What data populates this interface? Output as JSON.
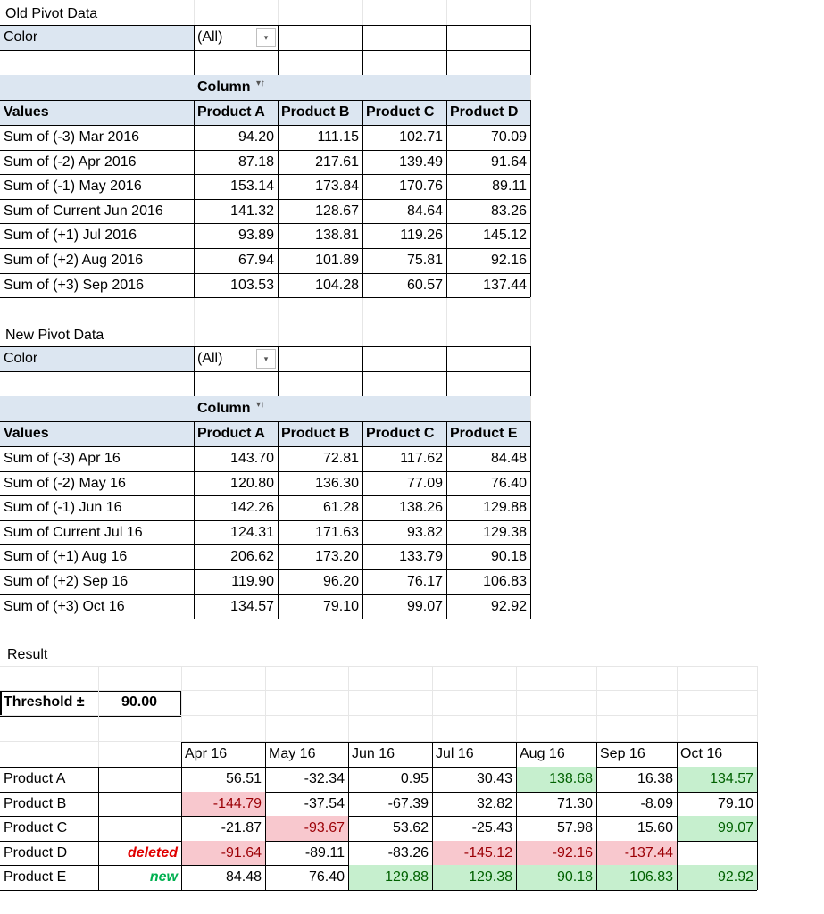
{
  "old": {
    "title": "Old Pivot Data",
    "filter_label": "Color",
    "filter_value": "(All)",
    "column_label": "Column",
    "values_label": "Values",
    "columns": [
      "Product A",
      "Product B",
      "Product C",
      "Product D"
    ],
    "rows": [
      {
        "label": "Sum of (-3) Mar 2016",
        "vals": [
          "94.20",
          "111.15",
          "102.71",
          "70.09"
        ]
      },
      {
        "label": "Sum of (-2) Apr 2016",
        "vals": [
          "87.18",
          "217.61",
          "139.49",
          "91.64"
        ]
      },
      {
        "label": "Sum of (-1) May 2016",
        "vals": [
          "153.14",
          "173.84",
          "170.76",
          "89.11"
        ]
      },
      {
        "label": "Sum of Current Jun 2016",
        "vals": [
          "141.32",
          "128.67",
          "84.64",
          "83.26"
        ]
      },
      {
        "label": "Sum of (+1) Jul 2016",
        "vals": [
          "93.89",
          "138.81",
          "119.26",
          "145.12"
        ]
      },
      {
        "label": "Sum of (+2) Aug 2016",
        "vals": [
          "67.94",
          "101.89",
          "75.81",
          "92.16"
        ]
      },
      {
        "label": "Sum of (+3) Sep 2016",
        "vals": [
          "103.53",
          "104.28",
          "60.57",
          "137.44"
        ]
      }
    ]
  },
  "new": {
    "title": "New Pivot Data",
    "filter_label": "Color",
    "filter_value": "(All)",
    "column_label": "Column",
    "values_label": "Values",
    "columns": [
      "Product A",
      "Product B",
      "Product C",
      "Product E"
    ],
    "rows": [
      {
        "label": "Sum of (-3) Apr 16",
        "vals": [
          "143.70",
          "72.81",
          "117.62",
          "84.48"
        ]
      },
      {
        "label": "Sum of (-2) May 16",
        "vals": [
          "120.80",
          "136.30",
          "77.09",
          "76.40"
        ]
      },
      {
        "label": "Sum of (-1) Jun 16",
        "vals": [
          "142.26",
          "61.28",
          "138.26",
          "129.88"
        ]
      },
      {
        "label": "Sum of Current Jul 16",
        "vals": [
          "124.31",
          "171.63",
          "93.82",
          "129.38"
        ]
      },
      {
        "label": "Sum of (+1) Aug 16",
        "vals": [
          "206.62",
          "173.20",
          "133.79",
          "90.18"
        ]
      },
      {
        "label": "Sum of (+2) Sep 16",
        "vals": [
          "119.90",
          "96.20",
          "76.17",
          "106.83"
        ]
      },
      {
        "label": "Sum of (+3) Oct 16",
        "vals": [
          "134.57",
          "79.10",
          "99.07",
          "92.92"
        ]
      }
    ]
  },
  "result": {
    "title": "Result",
    "threshold_label": "Threshold ±",
    "threshold_value": "90.00",
    "months": [
      "Apr 16",
      "May 16",
      "Jun 16",
      "Jul 16",
      "Aug 16",
      "Sep 16",
      "Oct 16"
    ],
    "rows": [
      {
        "label": "Product A",
        "tag": "",
        "tag_style": "",
        "vals": [
          "56.51",
          "-32.34",
          "0.95",
          "30.43",
          "138.68",
          "16.38",
          "134.57"
        ],
        "hl": [
          "",
          "",
          "",
          "",
          "green",
          "",
          "green"
        ]
      },
      {
        "label": "Product B",
        "tag": "",
        "tag_style": "",
        "vals": [
          "-144.79",
          "-37.54",
          "-67.39",
          "32.82",
          "71.30",
          "-8.09",
          "79.10"
        ],
        "hl": [
          "pink",
          "",
          "",
          "",
          "",
          "",
          ""
        ]
      },
      {
        "label": "Product C",
        "tag": "",
        "tag_style": "",
        "vals": [
          "-21.87",
          "-93.67",
          "53.62",
          "-25.43",
          "57.98",
          "15.60",
          "99.07"
        ],
        "hl": [
          "",
          "pink",
          "",
          "",
          "",
          "",
          "green"
        ]
      },
      {
        "label": "Product D",
        "tag": "deleted",
        "tag_style": "red-it",
        "vals": [
          "-91.64",
          "-89.11",
          "-83.26",
          "-145.12",
          "-92.16",
          "-137.44",
          ""
        ],
        "hl": [
          "pink",
          "",
          "",
          "pink",
          "pink",
          "pink",
          ""
        ]
      },
      {
        "label": "Product E",
        "tag": "new",
        "tag_style": "green-it",
        "vals": [
          "84.48",
          "76.40",
          "129.88",
          "129.38",
          "90.18",
          "106.83",
          "92.92"
        ],
        "hl": [
          "",
          "",
          "green",
          "green",
          "green",
          "green",
          "green"
        ]
      }
    ]
  },
  "colors": {
    "header_fill": "#dce6f1",
    "neg_fill": "#f8c8ce",
    "pos_fill": "#c6efce"
  },
  "icons": {
    "filter_dropdown": "dropdown-arrow-icon",
    "column_sort": "sort-filter-icon"
  }
}
